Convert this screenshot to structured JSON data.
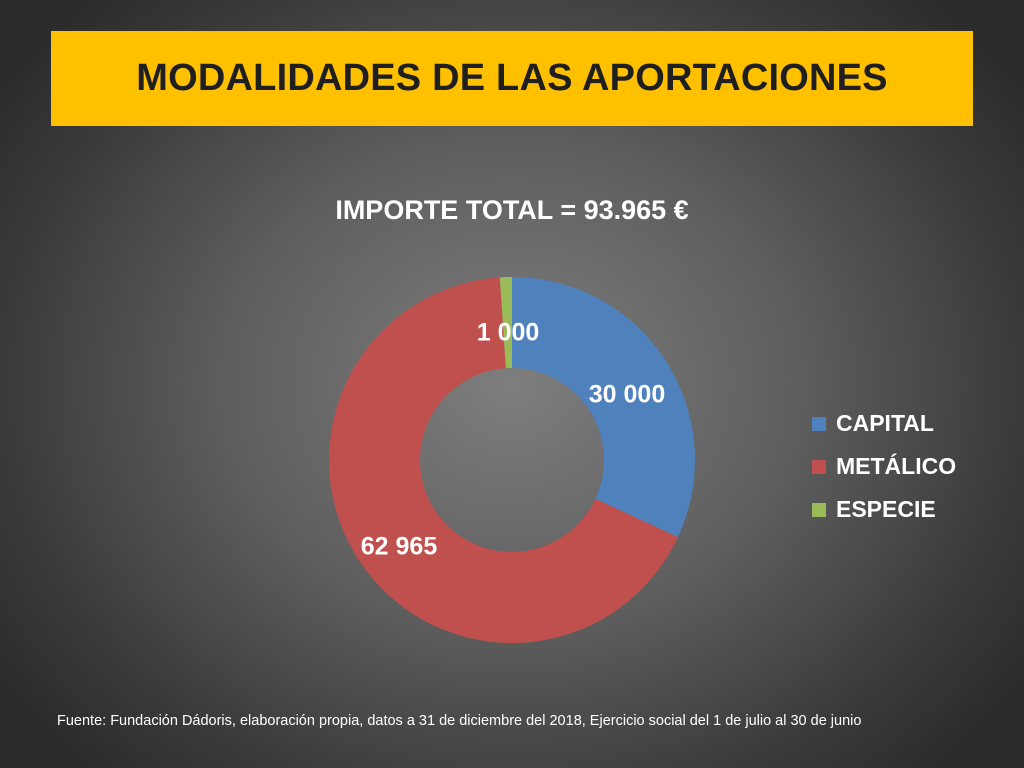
{
  "header": {
    "title": "MODALIDADES DE LAS APORTACIONES",
    "banner_color": "#ffc000"
  },
  "chart_data": {
    "type": "pie",
    "variant": "donut",
    "title": "IMPORTE TOTAL = 93.965 €",
    "categories": [
      "CAPITAL",
      "METÁLICO",
      "ESPECIE"
    ],
    "values": [
      30000,
      62965,
      1000
    ],
    "data_labels": [
      "30 000",
      "62 965",
      "1 000"
    ],
    "colors": [
      "#4f81bd",
      "#c0504d",
      "#9bbb59"
    ],
    "legend_position": "right"
  },
  "footer": {
    "source": "Fuente: Fundación Dádoris, elaboración propia, datos a 31 de diciembre del 2018, Ejercicio social del 1 de julio al 30 de junio"
  }
}
